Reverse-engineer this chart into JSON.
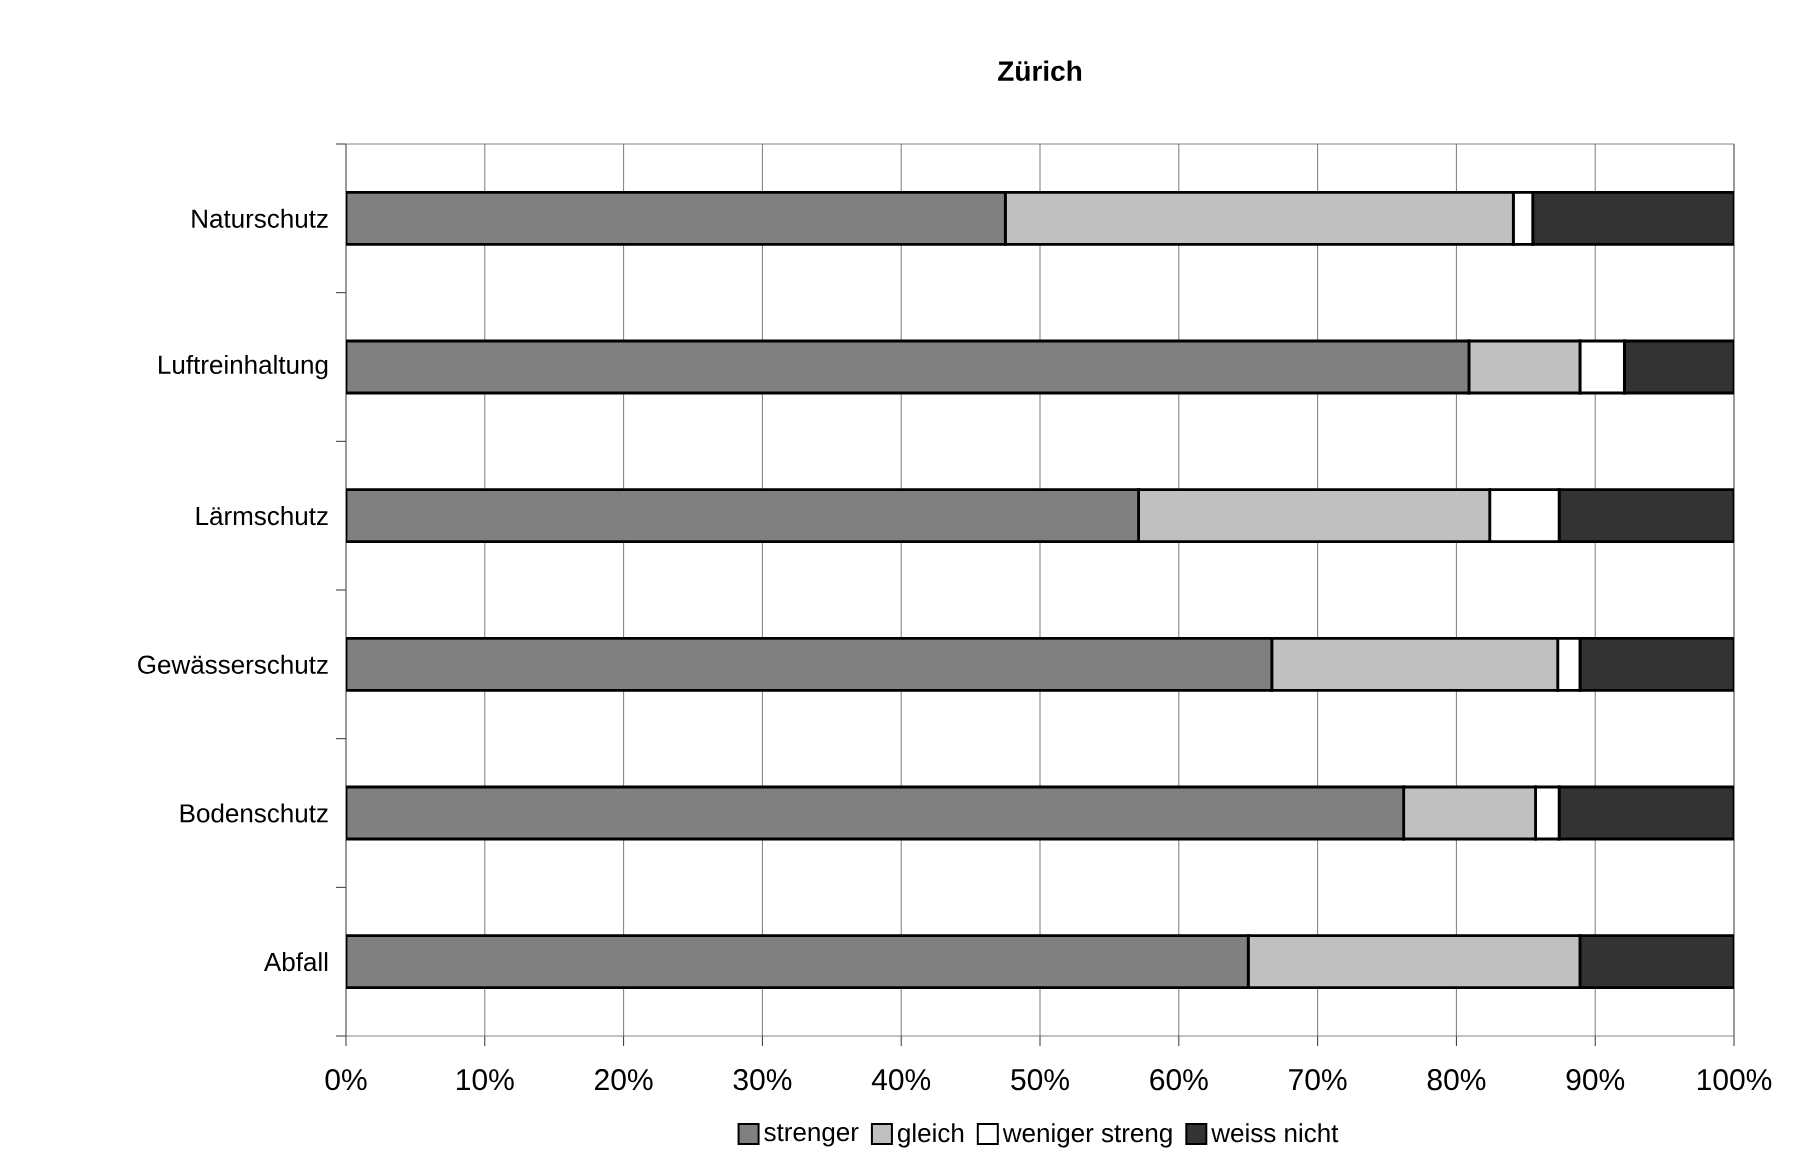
{
  "chart_data": {
    "type": "bar",
    "title": "Zürich",
    "orientation": "horizontal",
    "stacked": true,
    "categories": [
      "Naturschutz",
      "Luftreinhaltung",
      "Lärmschutz",
      "Gewässerschutz",
      "Bodenschutz",
      "Abfall"
    ],
    "series": [
      {
        "name": "strenger",
        "color": "#808080",
        "values": [
          47.5,
          80.9,
          57.1,
          66.7,
          76.2,
          65.0
        ]
      },
      {
        "name": "gleich",
        "color": "#c0c0c0",
        "values": [
          36.6,
          8.0,
          25.3,
          20.6,
          9.5,
          23.9
        ]
      },
      {
        "name": "weniger streng",
        "color": "#ffffff",
        "values": [
          1.4,
          3.2,
          5.0,
          1.6,
          1.7,
          0
        ]
      },
      {
        "name": "weiss nicht",
        "color": "#333333",
        "values": [
          14.5,
          7.9,
          12.6,
          11.1,
          12.6,
          11.1
        ]
      }
    ],
    "xlim": [
      0,
      100
    ],
    "xticks": [
      {
        "value": 0,
        "label": "0%"
      },
      {
        "value": 10,
        "label": "10%"
      },
      {
        "value": 20,
        "label": "20%"
      },
      {
        "value": 30,
        "label": "30%"
      },
      {
        "value": 40,
        "label": "40%"
      },
      {
        "value": 50,
        "label": "50%"
      },
      {
        "value": 60,
        "label": "60%"
      },
      {
        "value": 70,
        "label": "70%"
      },
      {
        "value": 80,
        "label": "80%"
      },
      {
        "value": 90,
        "label": "90%"
      },
      {
        "value": 100,
        "label": "100%"
      }
    ],
    "grid": "x",
    "legend": "bottom"
  }
}
